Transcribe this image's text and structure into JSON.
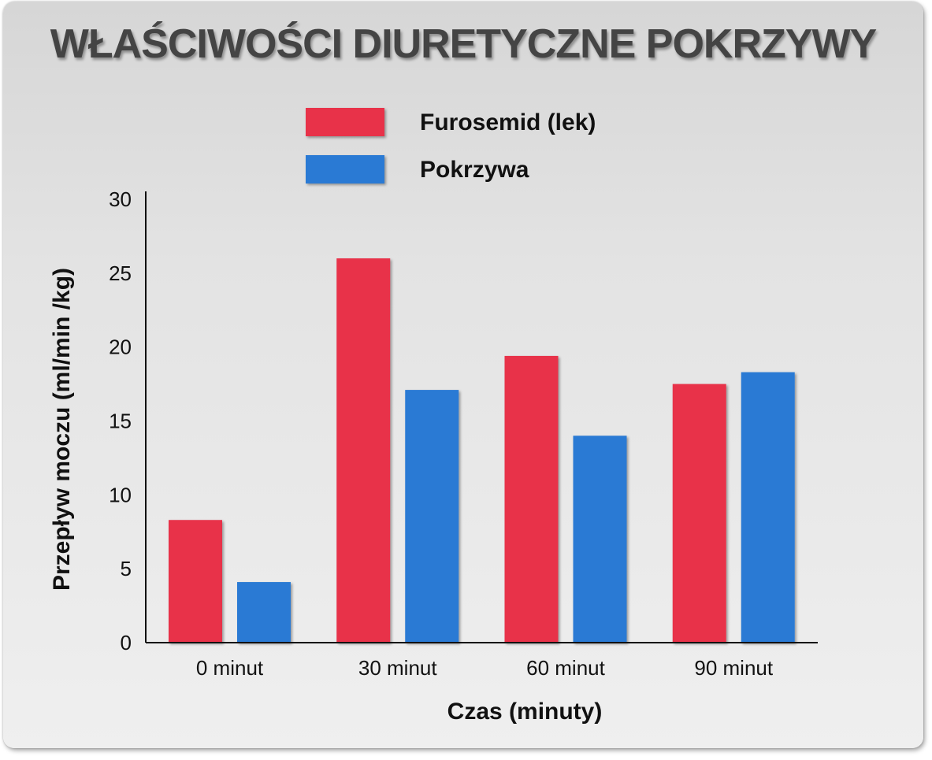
{
  "chart_data": {
    "type": "bar",
    "title": "WŁAŚCIWOŚCI DIURETYCZNE POKRZYWY",
    "xlabel": "Czas (minuty)",
    "ylabel": "Przepływ moczu (ml/min /kg)",
    "categories": [
      "0 minut",
      "30 minut",
      "60 minut",
      "90 minut"
    ],
    "series": [
      {
        "name": "Furosemid (lek)",
        "color": "#e8304a",
        "values": [
          8.3,
          26.0,
          19.4,
          17.5
        ]
      },
      {
        "name": "Pokrzywa",
        "color": "#2a7ad4",
        "values": [
          4.1,
          17.1,
          14.0,
          18.3
        ]
      }
    ],
    "ylim": [
      0,
      30
    ],
    "yticks": [
      "0",
      "5",
      "10",
      "15",
      "20",
      "25",
      "30"
    ],
    "grid": false,
    "legend_position": "top-center"
  }
}
